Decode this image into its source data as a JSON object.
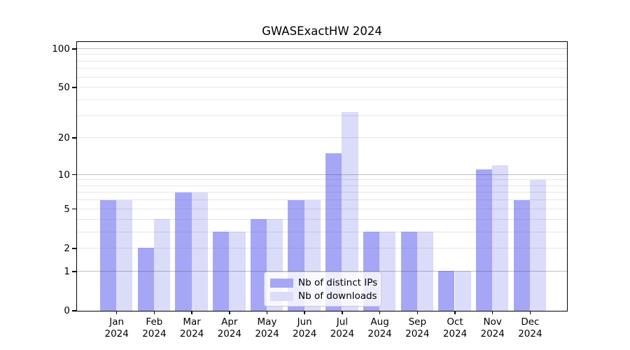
{
  "chart_data": {
    "type": "bar",
    "title": "GWASExactHW 2024",
    "categories": [
      "Jan",
      "Feb",
      "Mar",
      "Apr",
      "May",
      "Jun",
      "Jul",
      "Aug",
      "Sep",
      "Oct",
      "Nov",
      "Dec"
    ],
    "category_year": "2024",
    "series": [
      {
        "name": "Nb of distinct IPs",
        "color": "#a6a6f6",
        "values": [
          6,
          2,
          7,
          3,
          4,
          6,
          15,
          3,
          3,
          1,
          11,
          6
        ]
      },
      {
        "name": "Nb of downloads",
        "color": "#dbdbfa",
        "values": [
          6,
          4,
          7,
          3,
          4,
          6,
          32,
          3,
          3,
          1,
          12,
          9
        ]
      }
    ],
    "yscale": "log1p",
    "ylim": [
      0,
      113
    ],
    "y_ticks": [
      0,
      1,
      2,
      5,
      10,
      20,
      50,
      100
    ],
    "y_tick_labels": [
      "0",
      "1",
      "2",
      "5",
      "10",
      "20",
      "50",
      "100"
    ],
    "gridlines": {
      "major": [
        1,
        10,
        100
      ],
      "minor": [
        2,
        3,
        4,
        5,
        6,
        7,
        8,
        9,
        20,
        30,
        40,
        50,
        60,
        70,
        80,
        90
      ]
    },
    "grid": true,
    "legend_position": "lower center",
    "xlabel": "",
    "ylabel": ""
  }
}
